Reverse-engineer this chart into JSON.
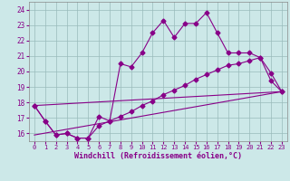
{
  "xlabel": "Windchill (Refroidissement éolien,°C)",
  "bg_color": "#cce8e8",
  "line_color": "#880088",
  "grid_color": "#99bbbb",
  "x_ticks": [
    0,
    1,
    2,
    3,
    4,
    5,
    6,
    7,
    8,
    9,
    10,
    11,
    12,
    13,
    14,
    15,
    16,
    17,
    18,
    19,
    20,
    21,
    22,
    23
  ],
  "y_ticks": [
    16,
    17,
    18,
    19,
    20,
    21,
    22,
    23,
    24
  ],
  "xlim": [
    -0.5,
    23.5
  ],
  "ylim": [
    15.5,
    24.5
  ],
  "series_with_markers": [
    {
      "x": [
        0,
        1,
        2,
        3,
        4,
        5,
        6,
        7,
        8,
        9,
        10,
        11,
        12,
        13,
        14,
        15,
        16,
        17,
        18,
        19,
        20,
        21,
        22,
        23
      ],
      "y": [
        17.8,
        16.8,
        15.9,
        16.0,
        15.7,
        15.7,
        17.1,
        16.8,
        20.5,
        20.3,
        21.2,
        22.5,
        23.3,
        22.2,
        23.1,
        23.1,
        23.8,
        22.5,
        21.2,
        21.2,
        21.2,
        20.9,
        19.4,
        18.7
      ]
    },
    {
      "x": [
        0,
        1,
        2,
        3,
        4,
        5,
        6,
        7,
        8,
        9,
        10,
        11,
        12,
        13,
        14,
        15,
        16,
        17,
        18,
        19,
        20,
        21,
        22,
        23
      ],
      "y": [
        17.8,
        16.8,
        15.9,
        16.0,
        15.7,
        15.7,
        16.5,
        16.8,
        17.1,
        17.4,
        17.8,
        18.1,
        18.5,
        18.8,
        19.1,
        19.5,
        19.8,
        20.1,
        20.4,
        20.5,
        20.7,
        20.9,
        19.9,
        18.7
      ]
    }
  ],
  "series_lines": [
    {
      "x": [
        0,
        23
      ],
      "y": [
        17.8,
        18.7
      ]
    },
    {
      "x": [
        0,
        23
      ],
      "y": [
        15.9,
        18.7
      ]
    }
  ]
}
